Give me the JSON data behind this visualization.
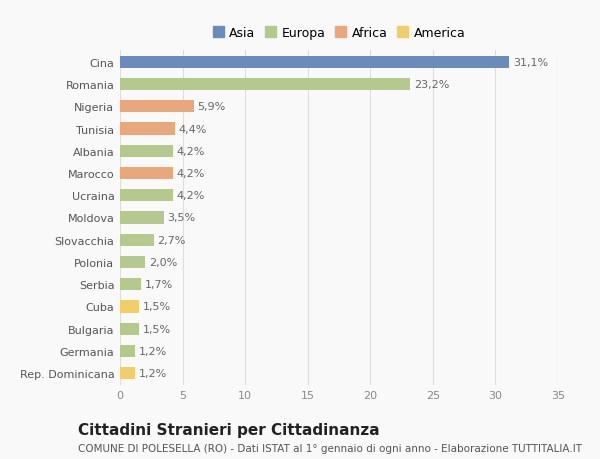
{
  "countries": [
    "Cina",
    "Romania",
    "Nigeria",
    "Tunisia",
    "Albania",
    "Marocco",
    "Ucraina",
    "Moldova",
    "Slovacchia",
    "Polonia",
    "Serbia",
    "Cuba",
    "Bulgaria",
    "Germania",
    "Rep. Dominicana"
  ],
  "values": [
    31.1,
    23.2,
    5.9,
    4.4,
    4.2,
    4.2,
    4.2,
    3.5,
    2.7,
    2.0,
    1.7,
    1.5,
    1.5,
    1.2,
    1.2
  ],
  "labels": [
    "31,1%",
    "23,2%",
    "5,9%",
    "4,4%",
    "4,2%",
    "4,2%",
    "4,2%",
    "3,5%",
    "2,7%",
    "2,0%",
    "1,7%",
    "1,5%",
    "1,5%",
    "1,2%",
    "1,2%"
  ],
  "continents": [
    "Asia",
    "Europa",
    "Africa",
    "Africa",
    "Europa",
    "Africa",
    "Europa",
    "Europa",
    "Europa",
    "Europa",
    "Europa",
    "America",
    "Europa",
    "Europa",
    "America"
  ],
  "colors": {
    "Asia": "#6b8cba",
    "Europa": "#b5c98e",
    "Africa": "#e8a87c",
    "America": "#f0cf6a"
  },
  "legend_order": [
    "Asia",
    "Europa",
    "Africa",
    "America"
  ],
  "xlim": [
    0,
    35
  ],
  "xticks": [
    0,
    5,
    10,
    15,
    20,
    25,
    30,
    35
  ],
  "title": "Cittadini Stranieri per Cittadinanza",
  "subtitle": "COMUNE DI POLESELLA (RO) - Dati ISTAT al 1° gennaio di ogni anno - Elaborazione TUTTITALIA.IT",
  "bg_color": "#f9f9f9",
  "grid_color": "#dddddd",
  "bar_height": 0.55,
  "title_fontsize": 11,
  "subtitle_fontsize": 7.5,
  "label_fontsize": 8,
  "tick_fontsize": 8,
  "legend_fontsize": 9
}
